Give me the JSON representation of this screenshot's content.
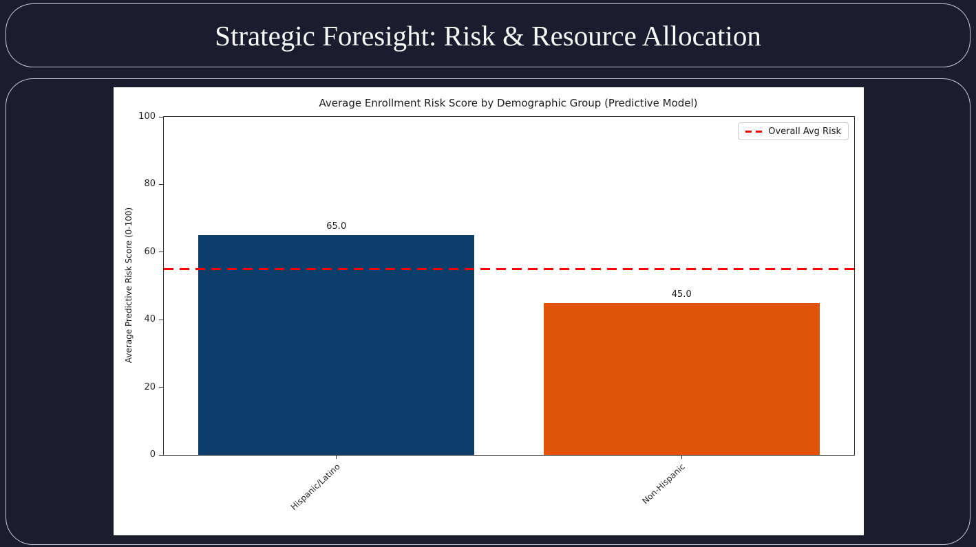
{
  "page": {
    "background_color": "#1c1c2e",
    "card_border_color": "#c9ccd6",
    "figure_background": "#ffffff"
  },
  "header": {
    "title": "Strategic Foresight: Risk & Resource Allocation"
  },
  "chart_data": {
    "type": "bar",
    "title": "Average Enrollment Risk Score by Demographic Group (Predictive Model)",
    "xlabel": "",
    "ylabel": "Average Predictive Risk Score (0-100)",
    "categories": [
      "Hispanic/Latino",
      "Non-Hispanic"
    ],
    "values": [
      65.0,
      45.0
    ],
    "bar_value_labels": [
      "65.0",
      "45.0"
    ],
    "bar_colors": [
      "#0d3d6b",
      "#e0540a"
    ],
    "ylim": [
      0,
      100
    ],
    "yticks": [
      0,
      20,
      40,
      60,
      80,
      100
    ],
    "grid": false,
    "reference_line": {
      "value": 55,
      "label": "Overall Avg Risk",
      "color": "#ff0000",
      "style": "dashed"
    },
    "legend": {
      "position": "upper right",
      "entries": [
        {
          "label": "Overall Avg Risk",
          "marker": "dashed-line",
          "color": "#ff0000"
        }
      ]
    }
  }
}
